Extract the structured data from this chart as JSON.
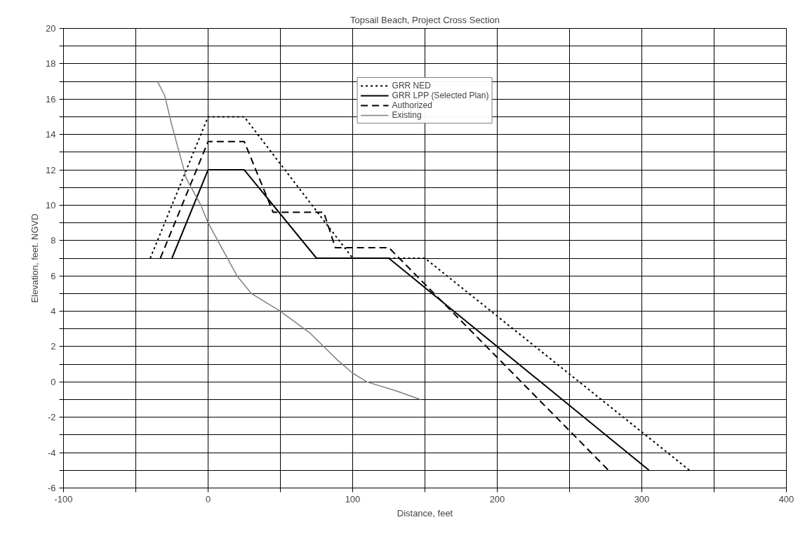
{
  "chart_data": {
    "type": "line",
    "title": "Topsail Beach, Project Cross Section",
    "xlabel": "Distance, feet",
    "ylabel": "Elevation, feet. NGVD",
    "xlim": [
      -100,
      400
    ],
    "ylim": [
      -6,
      20
    ],
    "xticks": [
      -100,
      {
        "value": -50,
        "label": null
      },
      0,
      {
        "value": 50,
        "label": null
      },
      100,
      {
        "value": 150,
        "label": null
      },
      200,
      {
        "value": 250,
        "label": null
      },
      300,
      {
        "value": 350,
        "label": null
      },
      400
    ],
    "yticks": [
      -6,
      {
        "value": -5,
        "label": null
      },
      -4,
      {
        "value": -3,
        "label": null
      },
      -2,
      {
        "value": -1,
        "label": null
      },
      0,
      {
        "value": 1,
        "label": null
      },
      2,
      {
        "value": 3,
        "label": null
      },
      4,
      {
        "value": 5,
        "label": null
      },
      6,
      {
        "value": 7,
        "label": null
      },
      8,
      {
        "value": 9,
        "label": null
      },
      10,
      {
        "value": 11,
        "label": null
      },
      12,
      {
        "value": 13,
        "label": null
      },
      14,
      {
        "value": 15,
        "label": null
      },
      16,
      {
        "value": 17,
        "label": null
      },
      18,
      {
        "value": 19,
        "label": null
      },
      20
    ],
    "grid": true,
    "legend": "top",
    "marker": "none",
    "series": [
      {
        "name": "GRR NED",
        "color": "#000000",
        "line_style": "dotted",
        "x": [
          -40,
          0,
          25,
          100,
          150,
          333
        ],
        "values": [
          7,
          15,
          15,
          7,
          7,
          -5
        ]
      },
      {
        "name": "GRR LPP (Selected Plan)",
        "color": "#000000",
        "line_style": "solid",
        "x": [
          -25,
          0,
          25,
          75,
          125,
          305
        ],
        "values": [
          7,
          12,
          12,
          7,
          7,
          -5
        ]
      },
      {
        "name": "Authorized",
        "color": "#000000",
        "line_style": "dashed",
        "x": [
          -33,
          0,
          25,
          45,
          80,
          88,
          125,
          277
        ],
        "values": [
          7,
          13.6,
          13.6,
          9.6,
          9.6,
          7.6,
          7.6,
          -5
        ]
      },
      {
        "name": "Existing",
        "color": "#808080",
        "line_style": "solid",
        "x": [
          -35,
          -30,
          -25,
          -15,
          -5,
          0,
          10,
          20,
          30,
          50,
          70,
          90,
          100,
          110,
          130,
          147
        ],
        "values": [
          17,
          16.2,
          14.5,
          11.5,
          10,
          9,
          7.5,
          6,
          5,
          4,
          2.8,
          1.2,
          0.5,
          0,
          -0.5,
          -1
        ]
      }
    ]
  }
}
